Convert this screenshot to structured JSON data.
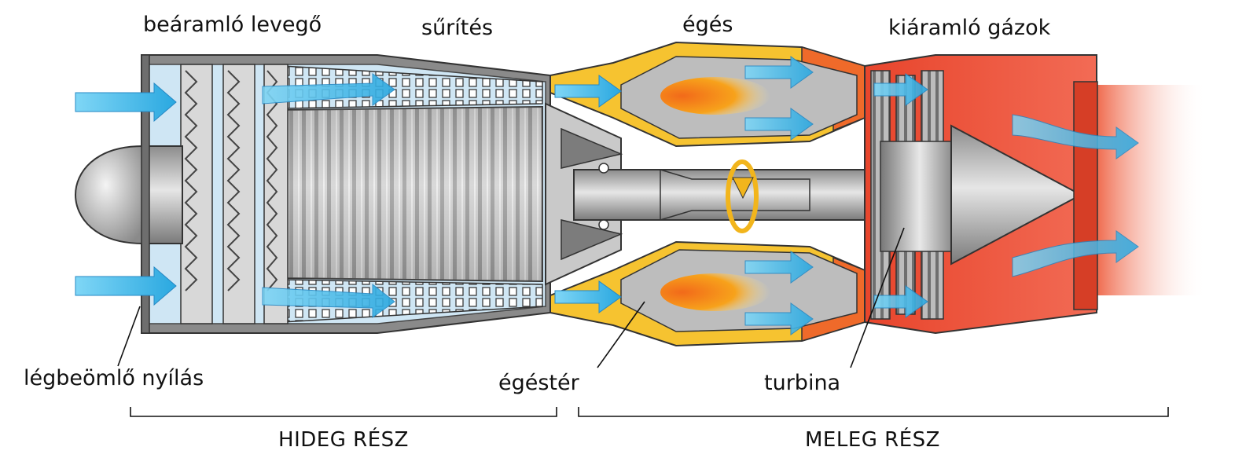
{
  "labels": {
    "inflow_air": "beáramló levegő",
    "compression": "sűrítés",
    "combustion": "égés",
    "exhaust_gases": "kiáramló gázok",
    "air_intake": "légbeömlő nyílás",
    "combustion_chamber": "égéstér",
    "turbine": "turbina"
  },
  "sections": {
    "cold": "HIDEG RÉSZ",
    "hot": "MELEG RÉSZ"
  },
  "colors": {
    "air_flow": "#3db8ea",
    "cold_section": "#cfe6f4",
    "casing_gray": "#9a9a9a",
    "combustion_yellow": "#f6c330",
    "hot_orange": "#ef6a2a",
    "exhaust_red": "#e8452c",
    "flame": "#f7a21b"
  }
}
